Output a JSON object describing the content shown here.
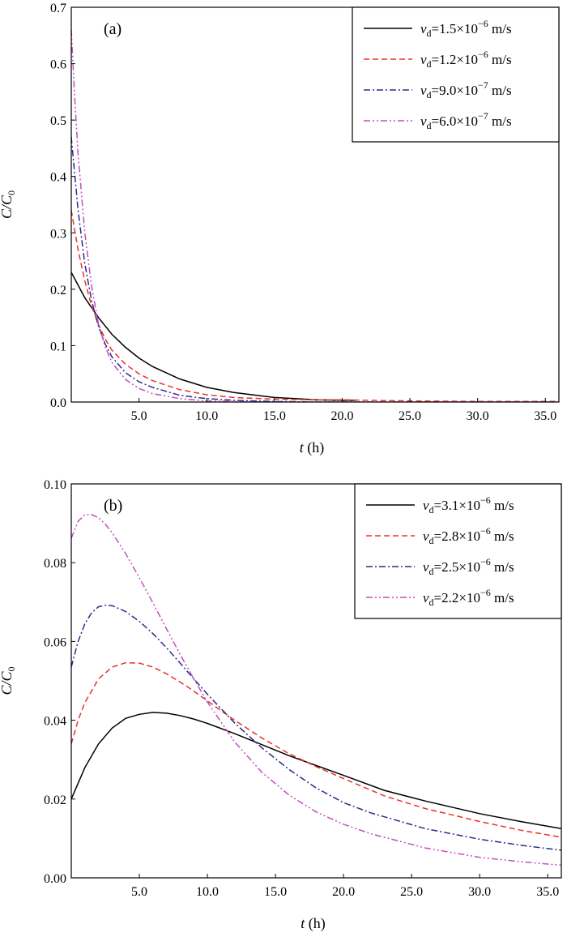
{
  "chart_data": [
    {
      "type": "line",
      "panel": "(a)",
      "xlabel": "t (h)",
      "ylabel": "C/C0",
      "xlim": [
        0,
        36
      ],
      "ylim": [
        0,
        0.7
      ],
      "xticks": [
        "5.0",
        "10.0",
        "15.0",
        "20.0",
        "25.0",
        "30.0",
        "35.0"
      ],
      "yticks": [
        "0.0",
        "0.1",
        "0.2",
        "0.3",
        "0.4",
        "0.5",
        "0.6",
        "0.7"
      ],
      "legend_position": "top-right",
      "series": [
        {
          "name": "vd=1.5×10−6 m/s",
          "color": "#000000",
          "dash": "solid",
          "x": [
            0,
            1,
            2,
            3,
            4,
            5,
            6,
            8,
            10,
            12,
            15,
            18,
            20,
            21
          ],
          "y": [
            0.23,
            0.185,
            0.15,
            0.12,
            0.097,
            0.078,
            0.063,
            0.041,
            0.026,
            0.017,
            0.008,
            0.004,
            0.003,
            0.003
          ]
        },
        {
          "name": "vd=1.2×10−6 m/s",
          "color": "#e8332a",
          "dash": "dashed",
          "x": [
            0,
            0.5,
            1,
            1.5,
            2,
            2.5,
            3,
            4,
            5,
            6,
            8,
            10,
            12,
            15,
            18,
            20,
            22,
            25,
            30,
            36
          ],
          "y": [
            0.34,
            0.27,
            0.215,
            0.17,
            0.138,
            0.112,
            0.092,
            0.067,
            0.05,
            0.038,
            0.022,
            0.013,
            0.008,
            0.005,
            0.004,
            0.004,
            0.003,
            0.002,
            0.001,
            0.001
          ]
        },
        {
          "name": "vd=9.0×10−7 m/s",
          "color": "#2b2b8c",
          "dash": "dashdot",
          "x": [
            0,
            0.5,
            1,
            1.5,
            2,
            2.5,
            3,
            4,
            5,
            6,
            8,
            10,
            12,
            15,
            18,
            20,
            25,
            30,
            36
          ],
          "y": [
            0.47,
            0.34,
            0.245,
            0.18,
            0.135,
            0.103,
            0.08,
            0.052,
            0.036,
            0.026,
            0.012,
            0.006,
            0.003,
            0.001,
            0,
            0,
            0,
            0,
            0
          ]
        },
        {
          "name": "vd=6.0×10−7 m/s",
          "color": "#c44fbf",
          "dash": "dashdotdot",
          "x": [
            0,
            0.25,
            0.5,
            1,
            1.5,
            2,
            2.5,
            3,
            4,
            5,
            6,
            8,
            10,
            12,
            15,
            18,
            20,
            25,
            30,
            36
          ],
          "y": [
            0.66,
            0.54,
            0.44,
            0.3,
            0.205,
            0.14,
            0.098,
            0.07,
            0.04,
            0.024,
            0.015,
            0.006,
            0.002,
            0.001,
            0,
            0,
            0,
            0,
            0,
            0
          ]
        }
      ]
    },
    {
      "type": "line",
      "panel": "(b)",
      "xlabel": "t (h)",
      "ylabel": "C/C0",
      "xlim": [
        0,
        36
      ],
      "ylim": [
        0,
        0.1
      ],
      "xticks": [
        "5.0",
        "10.0",
        "15.0",
        "20.0",
        "25.0",
        "30.0",
        "35.0"
      ],
      "yticks": [
        "0.00",
        "0.02",
        "0.04",
        "0.06",
        "0.08",
        "0.10"
      ],
      "legend_position": "top-right",
      "series": [
        {
          "name": "vd=3.1×10−6 m/s",
          "color": "#000000",
          "dash": "solid",
          "x": [
            0,
            1,
            2,
            3,
            4,
            5,
            6,
            7,
            8,
            9,
            10,
            12,
            14,
            16,
            18,
            20,
            23,
            26,
            30,
            33,
            36
          ],
          "y": [
            0.02,
            0.028,
            0.034,
            0.038,
            0.0405,
            0.0415,
            0.042,
            0.0418,
            0.0412,
            0.0403,
            0.0392,
            0.0366,
            0.0338,
            0.031,
            0.0285,
            0.026,
            0.0222,
            0.0195,
            0.0163,
            0.0143,
            0.0125
          ]
        },
        {
          "name": "vd=2.8×10−6 m/s",
          "color": "#e8332a",
          "dash": "dashed",
          "x": [
            0,
            0.5,
            1,
            2,
            3,
            4,
            5,
            6,
            7,
            8,
            9,
            10,
            12,
            14,
            16,
            18,
            20,
            23,
            26,
            30,
            33,
            36
          ],
          "y": [
            0.034,
            0.04,
            0.0445,
            0.0505,
            0.0535,
            0.0546,
            0.0545,
            0.0535,
            0.0518,
            0.0497,
            0.0474,
            0.0449,
            0.04,
            0.0355,
            0.0315,
            0.0282,
            0.0252,
            0.0208,
            0.0176,
            0.0143,
            0.0121,
            0.0103
          ]
        },
        {
          "name": "vd=2.5×10−6 m/s",
          "color": "#2b2b8c",
          "dash": "dashdot",
          "x": [
            0,
            0.5,
            1,
            1.5,
            2,
            2.5,
            3,
            4,
            5,
            6,
            7,
            8,
            9,
            10,
            12,
            14,
            16,
            18,
            20,
            22,
            26,
            30,
            33,
            36
          ],
          "y": [
            0.0535,
            0.06,
            0.0645,
            0.0673,
            0.0688,
            0.0692,
            0.0691,
            0.0676,
            0.0651,
            0.062,
            0.0584,
            0.0545,
            0.0505,
            0.0466,
            0.0393,
            0.033,
            0.0275,
            0.0228,
            0.0191,
            0.0165,
            0.0125,
            0.0098,
            0.0083,
            0.007
          ]
        },
        {
          "name": "vd=2.2×10−6 m/s",
          "color": "#c44fbf",
          "dash": "dashdotdot",
          "x": [
            0,
            0.5,
            1,
            1.5,
            2,
            2.5,
            3,
            4,
            5,
            6,
            7,
            8,
            9,
            10,
            12,
            14,
            16,
            18,
            20,
            22,
            26,
            30,
            33,
            36
          ],
          "y": [
            0.0862,
            0.0905,
            0.0922,
            0.0922,
            0.0914,
            0.0898,
            0.0876,
            0.0823,
            0.0762,
            0.0698,
            0.0632,
            0.0567,
            0.0505,
            0.0446,
            0.0345,
            0.0268,
            0.021,
            0.0167,
            0.0136,
            0.0112,
            0.0076,
            0.0052,
            0.0041,
            0.0032
          ]
        }
      ]
    }
  ]
}
